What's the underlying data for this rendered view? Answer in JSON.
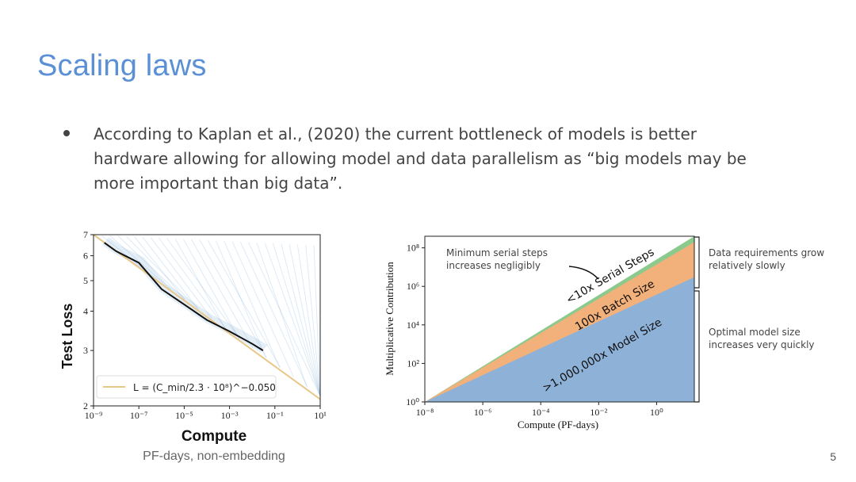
{
  "slide": {
    "title": "Scaling laws",
    "bullet": "According to Kaplan et al., (2020) the current bottleneck of models is better hardware allowing for allowing model and data parallelism as “big models may be more important than big data”.",
    "page_number": "5"
  },
  "chart_data": [
    {
      "type": "line",
      "ylabel": "Test Loss",
      "xlabel": "Compute",
      "xlabel_sub": "PF-days, non-embedding",
      "x_scale": "log",
      "y_scale": "log",
      "xlim": [
        1e-09,
        10
      ],
      "ylim": [
        2,
        7
      ],
      "x_ticks": [
        "10⁻⁹",
        "10⁻⁷",
        "10⁻⁵",
        "10⁻³",
        "10⁻¹",
        "10¹"
      ],
      "x_tick_values": [
        1e-09,
        1e-07,
        1e-05,
        0.001,
        0.1,
        10
      ],
      "y_ticks": [
        "2",
        "3",
        "4",
        "5",
        "6",
        "7"
      ],
      "y_tick_values": [
        2,
        3,
        4,
        5,
        6,
        7
      ],
      "legend": "L = (C_min/2.3 · 10⁸)^−0.050",
      "legend_position": "lower-left",
      "frontier": {
        "x": [
          3e-09,
          1e-08,
          1e-07,
          1e-06,
          1e-05,
          0.0001,
          0.001,
          0.01,
          0.03
        ],
        "y": [
          6.6,
          6.2,
          5.7,
          4.7,
          4.2,
          3.75,
          3.45,
          3.15,
          3.0
        ]
      },
      "fit": {
        "x": [
          1e-09,
          10
        ],
        "y": [
          7.0,
          2.1
        ]
      },
      "colors": {
        "frontier": "#111111",
        "fit": "#e8c88a",
        "curves": "#6b9fd1"
      }
    },
    {
      "type": "area",
      "ylabel": "Multiplicative Contribution",
      "xlabel": "Compute (PF-days)",
      "x_scale": "log",
      "y_scale": "log",
      "xlim": [
        1e-08,
        20
      ],
      "ylim": [
        1,
        400000000.0
      ],
      "x_ticks": [
        "10⁻⁸",
        "10⁻⁶",
        "10⁻⁴",
        "10⁻²",
        "10⁰"
      ],
      "x_tick_values": [
        1e-08,
        1e-06,
        0.0001,
        0.01,
        1
      ],
      "y_ticks": [
        "10⁰",
        "10²",
        "10⁴",
        "10⁶",
        "10⁸"
      ],
      "y_tick_values": [
        1,
        100,
        10000,
        1000000,
        100000000
      ],
      "series": [
        {
          "name": ">1,000,000x Model Size",
          "x": [
            1e-08,
            20
          ],
          "y": [
            1,
            3000000.0
          ],
          "color": "#8eb1d8"
        },
        {
          "name": "100x Batch Size",
          "x": [
            1e-08,
            20
          ],
          "y": [
            1,
            200000000.0
          ],
          "color": "#f2b07b"
        },
        {
          "name": "<10x Serial Steps",
          "x": [
            1e-08,
            20
          ],
          "y": [
            1,
            400000000.0
          ],
          "color": "#8cc98c"
        }
      ],
      "annotations": {
        "serial": "Minimum serial steps increases negligibly",
        "data": "Data requirements grow relatively slowly",
        "model": "Optimal model size increases very quickly"
      }
    }
  ]
}
